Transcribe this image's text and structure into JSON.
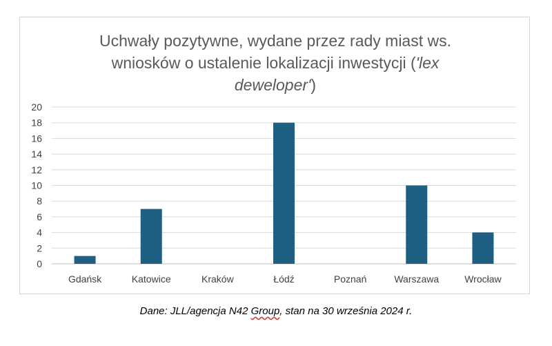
{
  "chart_data": {
    "type": "bar",
    "title": {
      "line1": "Uchwały pozytywne, wydane przez rady miast ws.",
      "line2_plain": "wniosków o ustalenie lokalizacji inwestycji (",
      "line2_italic": "'lex",
      "line3_italic": "deweloper'",
      "line3_plain": ")"
    },
    "categories": [
      "Gdańsk",
      "Katowice",
      "Kraków",
      "Łódź",
      "Poznań",
      "Warszawa",
      "Wrocław"
    ],
    "values": [
      1,
      7,
      0,
      18,
      0,
      10,
      4
    ],
    "ylim": [
      0,
      20
    ],
    "yticks": [
      0,
      2,
      4,
      6,
      8,
      10,
      12,
      14,
      16,
      18,
      20
    ],
    "grid": true,
    "bar_color": "#1f5f83",
    "grid_color": "#d9d9d9",
    "xlabel": "",
    "ylabel": ""
  },
  "source_note": {
    "before": "Dane: JLL/agencja N42 ",
    "flagged": "Group",
    "after": ", stan na 30 września 2024 r."
  }
}
